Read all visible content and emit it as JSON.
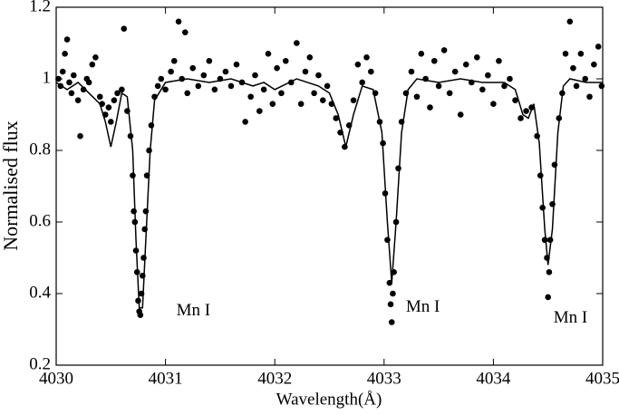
{
  "chart_data": {
    "type": "scatter",
    "xlabel": "Wavelength(Å)",
    "ylabel": "Normalised flux",
    "xlim": [
      4030,
      4035
    ],
    "ylim": [
      0.2,
      1.2
    ],
    "xticks": [
      4030,
      4031,
      4032,
      4033,
      4034,
      4035
    ],
    "yticks": [
      0.2,
      0.4,
      0.6,
      0.8,
      1,
      1.2
    ],
    "annotations": [
      "Mn I",
      "Mn I",
      "Mn I"
    ],
    "series": [
      {
        "type": "scatter",
        "color": "#000000",
        "x": [
          4030.02,
          4030.04,
          4030.06,
          4030.08,
          4030.1,
          4030.12,
          4030.14,
          4030.16,
          4030.2,
          4030.22,
          4030.25,
          4030.28,
          4030.3,
          4030.33,
          4030.36,
          4030.4,
          4030.42,
          4030.45,
          4030.48,
          4030.5,
          4030.53,
          4030.56,
          4030.6,
          4030.62,
          4030.65,
          4030.68,
          4030.7,
          4030.71,
          4030.72,
          4030.73,
          4030.74,
          4030.75,
          4030.76,
          4030.77,
          4030.78,
          4030.79,
          4030.8,
          4030.81,
          4030.82,
          4030.83,
          4030.85,
          4030.87,
          4030.9,
          4030.93,
          4030.96,
          4031.0,
          4031.05,
          4031.08,
          4031.12,
          4031.15,
          4031.18,
          4031.2,
          4031.25,
          4031.3,
          4031.35,
          4031.4,
          4031.45,
          4031.5,
          4031.55,
          4031.6,
          4031.65,
          4031.7,
          4031.73,
          4031.78,
          4031.82,
          4031.86,
          4031.9,
          4031.94,
          4031.98,
          4032.02,
          4032.06,
          4032.1,
          4032.15,
          4032.2,
          4032.24,
          4032.28,
          4032.32,
          4032.36,
          4032.4,
          4032.44,
          4032.48,
          4032.52,
          4032.56,
          4032.6,
          4032.64,
          4032.68,
          4032.72,
          4032.76,
          4032.8,
          4032.84,
          4032.88,
          4032.92,
          4032.96,
          4032.99,
          4033.01,
          4033.03,
          4033.05,
          4033.06,
          4033.07,
          4033.08,
          4033.09,
          4033.11,
          4033.13,
          4033.16,
          4033.2,
          4033.25,
          4033.3,
          4033.34,
          4033.38,
          4033.42,
          4033.46,
          4033.5,
          4033.55,
          4033.6,
          4033.65,
          4033.7,
          4033.75,
          4033.8,
          4033.85,
          4033.9,
          4033.95,
          4034.0,
          4034.05,
          4034.1,
          4034.15,
          4034.2,
          4034.25,
          4034.3,
          4034.35,
          4034.4,
          4034.43,
          4034.45,
          4034.47,
          4034.49,
          4034.5,
          4034.51,
          4034.52,
          4034.54,
          4034.56,
          4034.6,
          4034.63,
          4034.66,
          4034.7,
          4034.73,
          4034.76,
          4034.8,
          4034.84,
          4034.88,
          4034.92,
          4034.96,
          4034.99
        ],
        "values": [
          1.0,
          0.98,
          1.02,
          1.07,
          1.11,
          0.99,
          0.96,
          1.01,
          0.94,
          0.84,
          0.97,
          1.0,
          0.99,
          1.04,
          1.06,
          0.95,
          0.93,
          0.9,
          0.92,
          0.88,
          0.94,
          0.96,
          0.97,
          1.14,
          0.91,
          0.84,
          0.73,
          0.63,
          0.6,
          0.52,
          0.46,
          0.38,
          0.35,
          0.34,
          0.4,
          0.45,
          0.5,
          0.58,
          0.63,
          0.73,
          0.8,
          0.87,
          0.95,
          0.98,
          1.0,
          0.97,
          1.02,
          1.05,
          1.16,
          1.0,
          1.13,
          0.96,
          1.03,
          0.98,
          1.01,
          1.05,
          0.97,
          1.0,
          1.02,
          0.98,
          1.04,
          0.99,
          0.88,
          0.95,
          1.01,
          0.91,
          0.97,
          1.07,
          0.93,
          1.03,
          0.96,
          1.05,
          0.99,
          1.1,
          0.93,
          1.02,
          1.06,
          0.96,
          1.01,
          0.94,
          0.98,
          0.93,
          0.89,
          0.85,
          0.81,
          0.87,
          0.94,
          1.04,
          0.99,
          1.06,
          1.02,
          0.96,
          0.88,
          0.82,
          0.68,
          0.55,
          0.43,
          0.37,
          0.32,
          0.4,
          0.46,
          0.6,
          0.75,
          0.88,
          0.96,
          1.02,
          0.95,
          1.07,
          1.0,
          0.92,
          1.05,
          0.98,
          1.08,
          0.96,
          1.02,
          0.9,
          1.04,
          0.99,
          1.06,
          0.97,
          1.01,
          0.93,
          1.05,
          0.98,
          1.0,
          0.94,
          0.89,
          0.91,
          0.92,
          0.84,
          0.73,
          0.64,
          0.55,
          0.5,
          0.39,
          0.46,
          0.55,
          0.65,
          0.76,
          0.89,
          0.96,
          1.07,
          1.16,
          1.03,
          0.98,
          1.07,
          1.0,
          0.95,
          1.04,
          1.09,
          0.98
        ]
      },
      {
        "type": "line",
        "color": "#000000",
        "x": [
          4030.0,
          4030.1,
          4030.2,
          4030.3,
          4030.4,
          4030.45,
          4030.5,
          4030.55,
          4030.6,
          4030.65,
          4030.7,
          4030.73,
          4030.76,
          4030.79,
          4030.82,
          4030.86,
          4030.9,
          4031.0,
          4031.2,
          4031.4,
          4031.6,
          4031.8,
          4031.9,
          4032.0,
          4032.2,
          4032.4,
          4032.5,
          4032.58,
          4032.65,
          4032.72,
          4032.8,
          4032.9,
          4032.98,
          4033.03,
          4033.07,
          4033.11,
          4033.16,
          4033.22,
          4033.3,
          4033.5,
          4033.7,
          4033.9,
          4034.1,
          4034.2,
          4034.27,
          4034.32,
          4034.37,
          4034.42,
          4034.47,
          4034.5,
          4034.54,
          4034.59,
          4034.64,
          4034.7,
          4034.85,
          4035.0
        ],
        "values": [
          0.99,
          0.97,
          0.99,
          0.96,
          0.93,
          0.88,
          0.81,
          0.88,
          0.96,
          0.95,
          0.8,
          0.55,
          0.36,
          0.36,
          0.55,
          0.8,
          0.94,
          0.99,
          1.0,
          0.99,
          1.0,
          0.98,
          0.99,
          0.97,
          1.0,
          0.98,
          0.96,
          0.9,
          0.81,
          0.9,
          0.98,
          0.97,
          0.85,
          0.6,
          0.43,
          0.6,
          0.85,
          0.97,
          1.0,
          0.99,
          1.0,
          0.99,
          0.99,
          0.97,
          0.9,
          0.89,
          0.93,
          0.82,
          0.58,
          0.48,
          0.58,
          0.85,
          0.98,
          1.0,
          0.99,
          0.99
        ]
      }
    ]
  }
}
